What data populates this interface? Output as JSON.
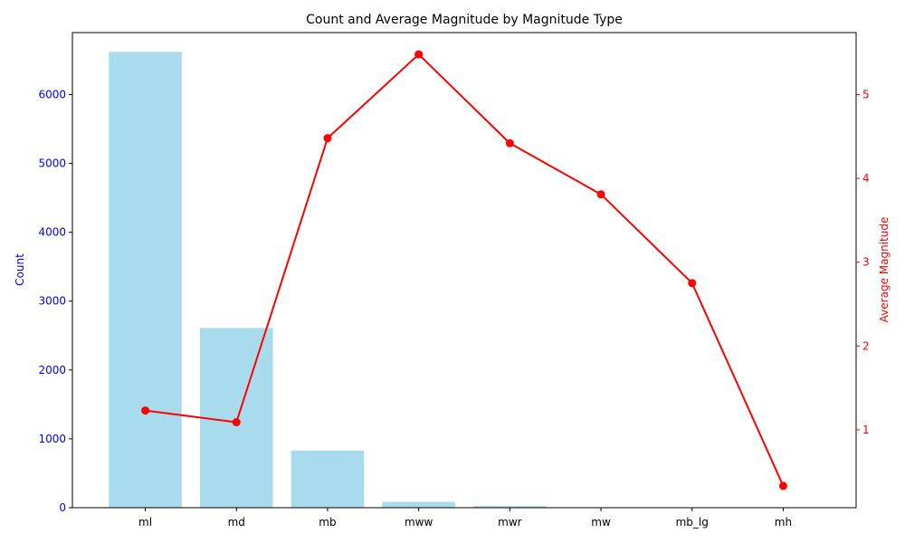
{
  "chart_data": {
    "type": "bar+line",
    "title": "Count and Average Magnitude by Magnitude Type",
    "categories": [
      "ml",
      "md",
      "mb",
      "mww",
      "mwr",
      "mw",
      "mb_lg",
      "mh"
    ],
    "left_axis": {
      "label": "Count",
      "color": "#0000ff",
      "ylim": [
        0,
        6900
      ],
      "ticks": [
        0,
        1000,
        2000,
        3000,
        4000,
        5000,
        6000
      ]
    },
    "right_axis": {
      "label": "Average Magnitude",
      "color": "#ff0000",
      "ylim": [
        0.07,
        5.74
      ],
      "ticks": [
        1,
        2,
        3,
        4,
        5
      ]
    },
    "series": [
      {
        "kind": "bar",
        "axis": "left",
        "color": "#a8dced",
        "values": [
          6620,
          2610,
          830,
          85,
          25,
          3,
          2,
          1
        ]
      },
      {
        "kind": "line",
        "axis": "right",
        "color": "#ff0000",
        "marker": "circle",
        "values": [
          1.23,
          1.09,
          4.48,
          5.48,
          4.42,
          3.81,
          2.75,
          0.33
        ]
      }
    ],
    "grid": false,
    "legend": "none"
  }
}
